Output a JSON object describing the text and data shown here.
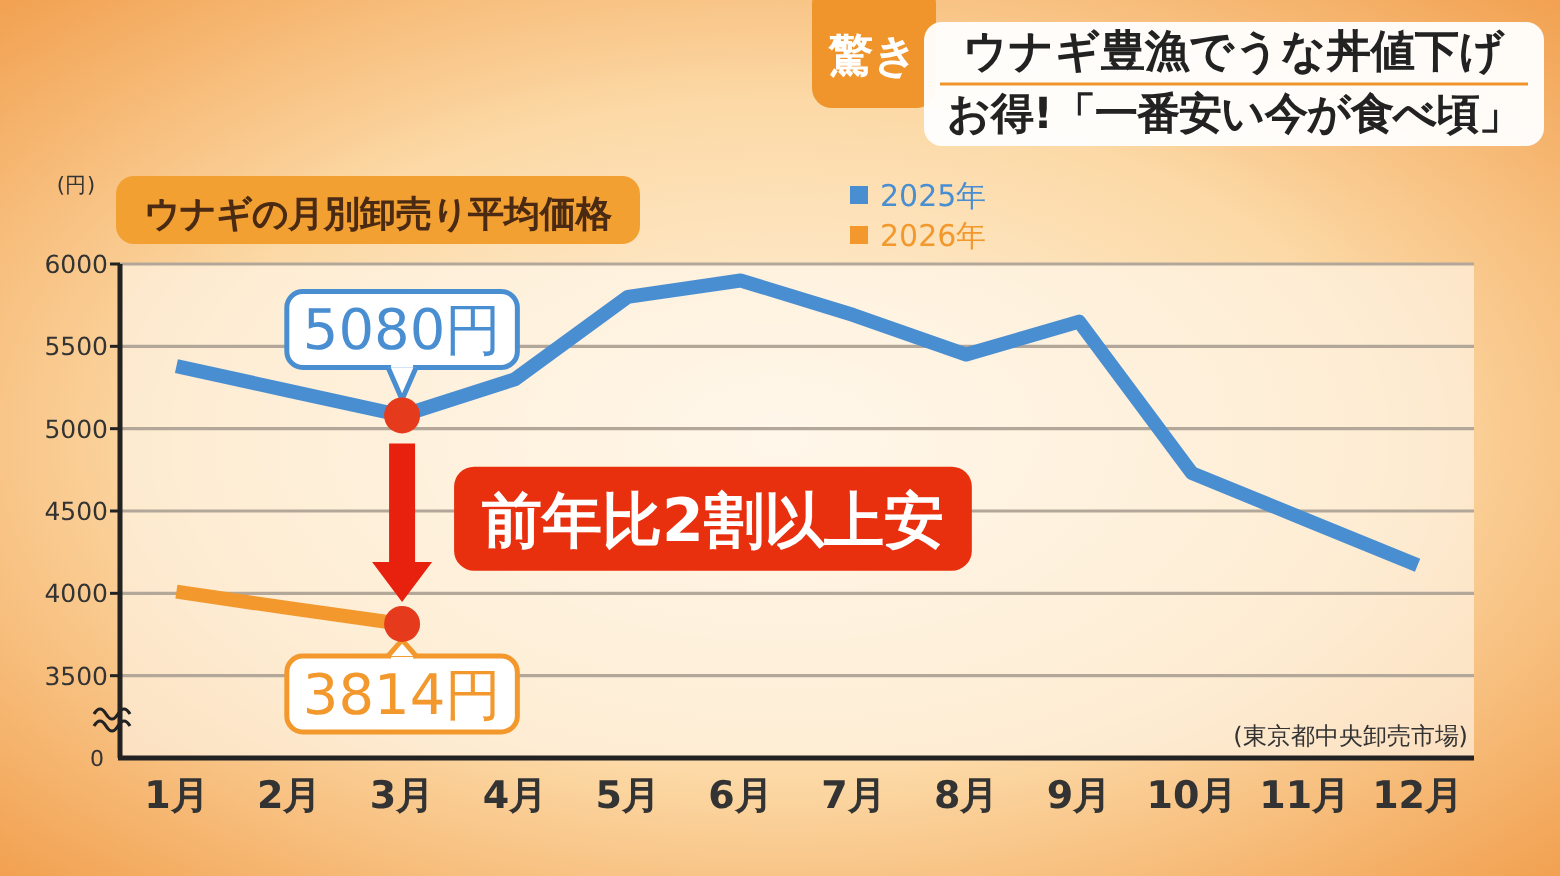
{
  "chart_data": {
    "type": "line",
    "title": "ウナギの月別卸売り平均価格",
    "ylabel": "(円)",
    "categories": [
      "1月",
      "2月",
      "3月",
      "4月",
      "5月",
      "6月",
      "7月",
      "8月",
      "9月",
      "10月",
      "11月",
      "12月"
    ],
    "series": [
      {
        "name": "2025年",
        "color": "#4a8ed2",
        "values": [
          5380,
          5230,
          5080,
          5300,
          5800,
          5900,
          5690,
          5450,
          5650,
          4730,
          4450,
          4170
        ],
        "value_labels": [
          null,
          null,
          "5080円",
          null,
          null,
          null,
          null,
          null,
          null,
          null,
          null,
          null
        ]
      },
      {
        "name": "2026年",
        "color": "#f2982c",
        "values": [
          4010,
          3910,
          3814,
          null,
          null,
          null,
          null,
          null,
          null,
          null,
          null,
          null
        ],
        "value_labels": [
          null,
          null,
          "3814円",
          null,
          null,
          null,
          null,
          null,
          null,
          null,
          null,
          null
        ]
      }
    ],
    "ylim": [
      3000,
      6000
    ],
    "yticks": [
      3500,
      4000,
      4500,
      5000,
      5500,
      6000
    ],
    "grid": "y",
    "legend": "top",
    "annotations": [
      "前年比2割以上安",
      "(東京都中央卸売市場)",
      "驚き",
      "ウナギ豊漁でうな丼値下げ",
      "お得!「一番安い今が食べ頃」",
      "0"
    ]
  }
}
